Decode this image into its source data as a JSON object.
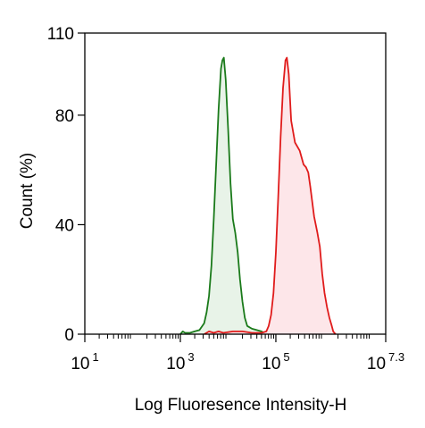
{
  "chart_data": {
    "type": "area",
    "xlabel": "Log Fluoresence Intensity-H",
    "ylabel": "Count  (%)",
    "x_scale": "log10",
    "xlim_log10": [
      1,
      7.3
    ],
    "ylim": [
      0,
      110
    ],
    "y_ticks": [
      {
        "value": 0,
        "label": "0"
      },
      {
        "value": 40,
        "label": "40"
      },
      {
        "value": 80,
        "label": "80"
      },
      {
        "value": 110,
        "label": "110"
      }
    ],
    "x_ticks": [
      {
        "exp_value": 1,
        "base": "10",
        "exp": "1"
      },
      {
        "exp_value": 3,
        "base": "10",
        "exp": "3"
      },
      {
        "exp_value": 5,
        "base": "10",
        "exp": "5"
      },
      {
        "exp_value": 7.3,
        "base": "10",
        "exp": "7.3"
      }
    ],
    "grid": false,
    "series": [
      {
        "color": "#1a7a1a",
        "fill": "#e8f3e8",
        "points": [
          [
            3.0,
            0
          ],
          [
            3.05,
            1
          ],
          [
            3.1,
            0.5
          ],
          [
            3.2,
            0.5
          ],
          [
            3.3,
            1
          ],
          [
            3.4,
            1.5
          ],
          [
            3.5,
            4
          ],
          [
            3.55,
            8
          ],
          [
            3.6,
            14
          ],
          [
            3.65,
            25
          ],
          [
            3.7,
            42
          ],
          [
            3.75,
            62
          ],
          [
            3.8,
            82
          ],
          [
            3.85,
            97
          ],
          [
            3.88,
            100
          ],
          [
            3.91,
            101
          ],
          [
            3.95,
            93
          ],
          [
            4.0,
            75
          ],
          [
            4.05,
            55
          ],
          [
            4.1,
            42
          ],
          [
            4.15,
            37
          ],
          [
            4.2,
            30
          ],
          [
            4.25,
            20
          ],
          [
            4.3,
            12
          ],
          [
            4.35,
            6
          ],
          [
            4.4,
            3
          ],
          [
            4.5,
            2
          ],
          [
            4.6,
            1.5
          ],
          [
            4.7,
            1
          ],
          [
            4.8,
            0
          ]
        ]
      },
      {
        "color": "#e01b1b",
        "fill": "#fde6e9",
        "points": [
          [
            3.5,
            0
          ],
          [
            3.6,
            1
          ],
          [
            3.7,
            0.5
          ],
          [
            3.8,
            1
          ],
          [
            3.9,
            0.5
          ],
          [
            4.1,
            1
          ],
          [
            4.3,
            1
          ],
          [
            4.5,
            0.5
          ],
          [
            4.7,
            0.5
          ],
          [
            4.8,
            1
          ],
          [
            4.85,
            3
          ],
          [
            4.9,
            7
          ],
          [
            4.95,
            15
          ],
          [
            5.0,
            30
          ],
          [
            5.05,
            50
          ],
          [
            5.1,
            72
          ],
          [
            5.15,
            90
          ],
          [
            5.2,
            100
          ],
          [
            5.23,
            101
          ],
          [
            5.27,
            95
          ],
          [
            5.32,
            78
          ],
          [
            5.4,
            70
          ],
          [
            5.5,
            67
          ],
          [
            5.58,
            62
          ],
          [
            5.63,
            61
          ],
          [
            5.68,
            59
          ],
          [
            5.72,
            54
          ],
          [
            5.8,
            43
          ],
          [
            5.87,
            37
          ],
          [
            5.92,
            32
          ],
          [
            5.97,
            22
          ],
          [
            6.02,
            15
          ],
          [
            6.07,
            10
          ],
          [
            6.12,
            6
          ],
          [
            6.17,
            3
          ],
          [
            6.2,
            1
          ],
          [
            6.25,
            0
          ]
        ]
      }
    ]
  }
}
